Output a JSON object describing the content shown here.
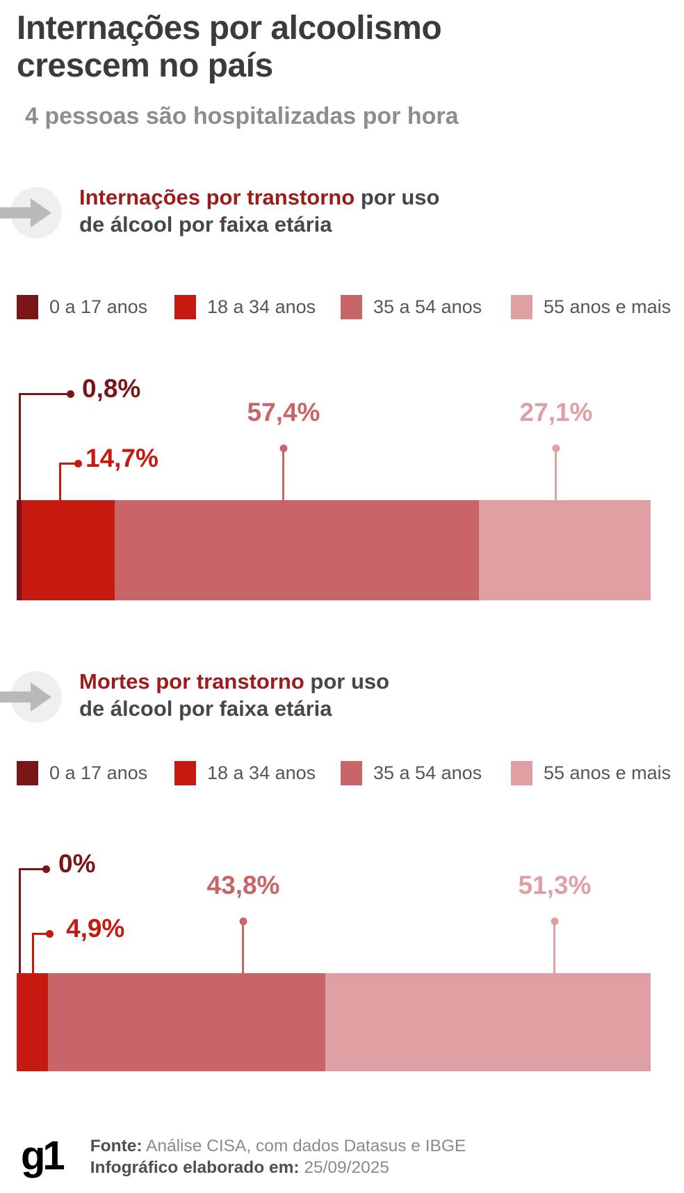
{
  "header": {
    "title": "Internações por alcoolismo\ncrescem no país",
    "subtitle": "4 pessoas são hospitalizadas por hora"
  },
  "colors": {
    "palette": [
      "#7A1517",
      "#C6190F",
      "#C76568",
      "#DFA0A4"
    ],
    "title_text": "#3B3B3B",
    "subtitle_text": "#8D8D8D",
    "section_accent": "#9C1C1C",
    "section_text": "#474747",
    "arrow_circle": "#EFEFEF",
    "arrow_glyph": "#B9B9B9",
    "footer_bg": "#EDEDED",
    "g1_red": "#C5170C"
  },
  "legend": {
    "items": [
      {
        "label": "0 a 17 anos"
      },
      {
        "label": "18 a 34 anos"
      },
      {
        "label": "35 a 54 anos"
      },
      {
        "label": "55 anos e mais"
      }
    ]
  },
  "sections": [
    {
      "heading_em": "Internações por transtorno",
      "heading_rest": "por uso",
      "heading_line2": "de álcool por faixa etária"
    },
    {
      "heading_em": "Mortes por transtorno",
      "heading_rest": "por uso",
      "heading_line2": "de álcool por faixa etária"
    }
  ],
  "chart_data": [
    {
      "type": "bar",
      "subtype": "horizontal-stacked-100pct",
      "title": "Internações por transtorno por uso de álcool por faixa etária",
      "categories": [
        "0 a 17 anos",
        "18 a 34 anos",
        "35 a 54 anos",
        "55 anos e mais"
      ],
      "values": [
        0.8,
        14.7,
        57.4,
        27.1
      ],
      "value_labels": [
        "0,8%",
        "14,7%",
        "57,4%",
        "27,1%"
      ],
      "unit": "%",
      "legend_position": "top",
      "axis": "none"
    },
    {
      "type": "bar",
      "subtype": "horizontal-stacked-100pct",
      "title": "Mortes por transtorno por uso de álcool por faixa etária",
      "categories": [
        "0 a 17 anos",
        "18 a 34 anos",
        "35 a 54 anos",
        "55 anos e mais"
      ],
      "values": [
        0,
        4.9,
        43.8,
        51.3
      ],
      "value_labels": [
        "0%",
        "4,9%",
        "43,8%",
        "51,3%"
      ],
      "unit": "%",
      "legend_position": "top",
      "axis": "none"
    }
  ],
  "footer": {
    "logo": "g1",
    "source_label": "Fonte:",
    "source_text": "Análise CISA, com dados Datasus e IBGE",
    "made_label": "Infográfico elaborado em:",
    "made_value": "25/09/2025"
  }
}
